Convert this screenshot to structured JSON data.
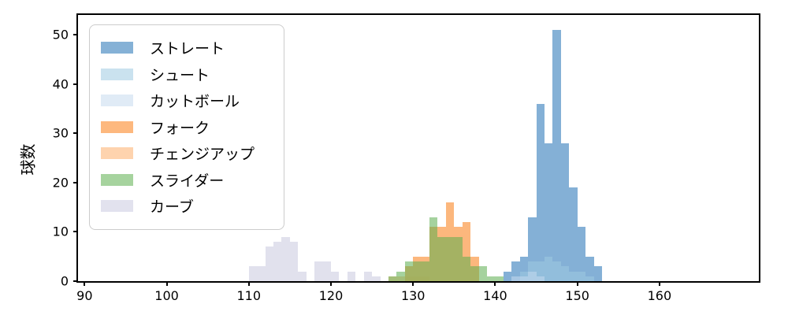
{
  "chart_data": {
    "type": "histogram",
    "title": "",
    "ylabel": "球数",
    "xlabel": "",
    "bin_width": 1,
    "x_ticks": [
      90,
      100,
      110,
      120,
      130,
      140,
      150,
      160
    ],
    "y_ticks": [
      0,
      10,
      20,
      30,
      40,
      50
    ],
    "x_range": [
      89.2,
      172.1
    ],
    "y_range": [
      0,
      54.06
    ],
    "grid": false,
    "legend_position": "upper-left",
    "spine_color": "#000000",
    "series_opacity": 0.55,
    "series": [
      {
        "name": "ストレート",
        "color": "#2171b5",
        "bins": [
          [
            141,
            2
          ],
          [
            142,
            4
          ],
          [
            143,
            5
          ],
          [
            144,
            13
          ],
          [
            145,
            36
          ],
          [
            146,
            28
          ],
          [
            147,
            51
          ],
          [
            148,
            28
          ],
          [
            149,
            19
          ],
          [
            150,
            11
          ],
          [
            151,
            5
          ],
          [
            152,
            3
          ]
        ]
      },
      {
        "name": "シュート",
        "color": "#9ecae1",
        "bins": [
          [
            143,
            2
          ],
          [
            144,
            4
          ],
          [
            145,
            4
          ],
          [
            146,
            5
          ],
          [
            147,
            4
          ],
          [
            148,
            3
          ],
          [
            149,
            2
          ],
          [
            150,
            2
          ],
          [
            151,
            1
          ]
        ]
      },
      {
        "name": "カットボール",
        "color": "#c6dbef",
        "bins": [
          [
            142,
            1
          ],
          [
            143,
            1
          ],
          [
            144,
            2
          ],
          [
            145,
            1
          ]
        ]
      },
      {
        "name": "フォーク",
        "color": "#fb7d14",
        "bins": [
          [
            129,
            3
          ],
          [
            130,
            5
          ],
          [
            131,
            5
          ],
          [
            132,
            11
          ],
          [
            133,
            11
          ],
          [
            134,
            16
          ],
          [
            135,
            11
          ],
          [
            136,
            12
          ],
          [
            137,
            5
          ]
        ]
      },
      {
        "name": "チェンジアップ",
        "color": "#fdae6b",
        "bins": [
          [
            127,
            1
          ],
          [
            128,
            1
          ],
          [
            129,
            1
          ],
          [
            130,
            1
          ],
          [
            131,
            1
          ]
        ]
      },
      {
        "name": "スライダー",
        "color": "#5daf4f",
        "bins": [
          [
            127,
            1
          ],
          [
            128,
            2
          ],
          [
            129,
            4
          ],
          [
            130,
            4
          ],
          [
            131,
            4
          ],
          [
            132,
            13
          ],
          [
            133,
            9
          ],
          [
            134,
            9
          ],
          [
            135,
            9
          ],
          [
            136,
            5
          ],
          [
            137,
            3
          ],
          [
            138,
            3
          ],
          [
            139,
            1
          ],
          [
            140,
            1
          ]
        ]
      },
      {
        "name": "カーブ",
        "color": "#cacae0",
        "bins": [
          [
            110,
            3
          ],
          [
            111,
            3
          ],
          [
            112,
            7
          ],
          [
            113,
            8
          ],
          [
            114,
            9
          ],
          [
            115,
            8
          ],
          [
            116,
            2
          ],
          [
            118,
            4
          ],
          [
            119,
            4
          ],
          [
            120,
            2
          ],
          [
            122,
            2
          ],
          [
            124,
            2
          ],
          [
            125,
            1
          ]
        ]
      }
    ]
  }
}
